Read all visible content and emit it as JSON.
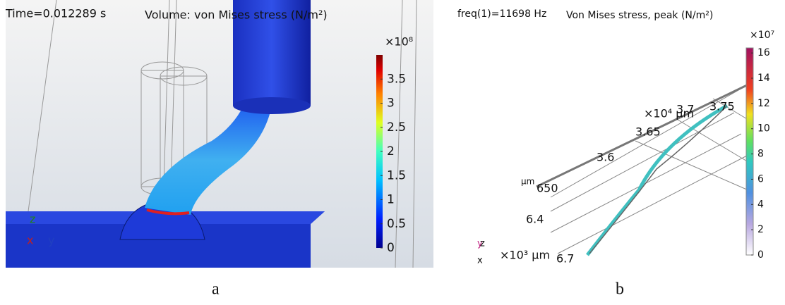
{
  "panels": [
    {
      "time_label": "Time=0.012289 s",
      "title": "Volume: von Mises stress (N/m²)",
      "colorbar": {
        "exponent": "×10⁸",
        "lim": [
          0,
          4
        ],
        "ticks": [
          0,
          0.5,
          1,
          1.5,
          2,
          2.5,
          3,
          3.5
        ]
      },
      "triad": [
        "z",
        "x",
        "y"
      ],
      "caption": "a"
    },
    {
      "time_label": "freq(1)=11698 Hz",
      "title": "Von Mises stress, peak (N/m²)",
      "colorbar": {
        "exponent": "×10⁷",
        "lim": [
          0,
          16.4
        ],
        "ticks": [
          0,
          2,
          4,
          6,
          8,
          10,
          12,
          14,
          16
        ]
      },
      "axis_labels": [
        "×10⁴ µm",
        "3.75",
        "3.7",
        "3.65",
        "3.6",
        "µm",
        "650",
        "6.4",
        "×10³ µm",
        "6.7"
      ],
      "triad": [
        "y",
        "z",
        "x"
      ],
      "caption": "b"
    }
  ]
}
